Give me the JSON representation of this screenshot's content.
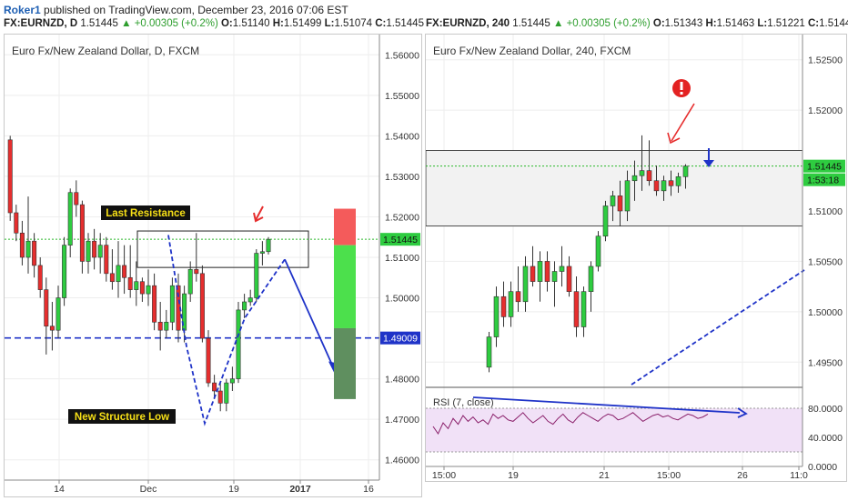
{
  "header": {
    "user": "Roker1",
    "published": "published on TradingView.com, December 23, 2016 07:06 EST"
  },
  "colors": {
    "up": "#2ecc40",
    "down": "#e62e2e",
    "blue": "#1f33c8",
    "guide": "#2ab82a"
  },
  "left_chart": {
    "ohlc": {
      "symbol": "FX:EURNZD, D",
      "price": "1.51445",
      "change": "▲ +0.00305 (+0.2%)",
      "o_label": "O:",
      "o": "1.51140",
      "h_label": "H:",
      "h": "1.51499",
      "l_label": "L:",
      "l": "1.51074",
      "c_label": "C:",
      "c": "1.51445"
    },
    "title": "Euro Fx/New Zealand Dollar, D, FXCM",
    "annotation_resistance": "Last Resistance",
    "annotation_low": "New Structure Low",
    "price_badge": "1.51445",
    "level_badge": "1.49009"
  },
  "right_chart": {
    "ohlc": {
      "symbol": "FX:EURNZD, 240",
      "price": "1.51445",
      "change": "▲ +0.00305 (+0.2%)",
      "o_label": "O:",
      "o": "1.51343",
      "h_label": "H:",
      "h": "1.51463",
      "l_label": "L:",
      "l": "1.51221",
      "c_label": "C:",
      "c": "1.51445"
    },
    "title": "Euro Fx/New Zealand Dollar, 240, FXCM",
    "price_badge": "1.51445",
    "timer_badge": "1:53:18",
    "rsi_label": "RSI (7, close)",
    "alert_icon": "exclamation-icon"
  },
  "chart_data": [
    {
      "type": "candlestick",
      "symbol": "FX:EURNZD",
      "interval": "D",
      "x_ticks": [
        "14",
        "Dec",
        "19",
        "2017",
        "16"
      ],
      "y_ticks": [
        "1.56000",
        "1.55000",
        "1.54000",
        "1.53000",
        "1.52000",
        "1.51000",
        "1.50000",
        "1.48000",
        "1.47000",
        "1.46000"
      ],
      "ylim": [
        1.455,
        1.565
      ],
      "horizontal_levels": [
        1.51445,
        1.49009
      ],
      "resistance_zone": [
        1.5075,
        1.5165
      ],
      "candles": [
        [
          1.539,
          1.54,
          1.519,
          1.521
        ],
        [
          1.521,
          1.523,
          1.514,
          1.516
        ],
        [
          1.516,
          1.519,
          1.508,
          1.51
        ],
        [
          1.51,
          1.525,
          1.506,
          1.514
        ],
        [
          1.514,
          1.516,
          1.505,
          1.508
        ],
        [
          1.508,
          1.51,
          1.5,
          1.502
        ],
        [
          1.502,
          1.505,
          1.486,
          1.493
        ],
        [
          1.493,
          1.499,
          1.487,
          1.492
        ],
        [
          1.492,
          1.503,
          1.49,
          1.5
        ],
        [
          1.5,
          1.515,
          1.498,
          1.513
        ],
        [
          1.513,
          1.527,
          1.51,
          1.526
        ],
        [
          1.526,
          1.529,
          1.52,
          1.523
        ],
        [
          1.523,
          1.524,
          1.506,
          1.509
        ],
        [
          1.509,
          1.516,
          1.506,
          1.514
        ],
        [
          1.514,
          1.517,
          1.507,
          1.51
        ],
        [
          1.51,
          1.516,
          1.506,
          1.513
        ],
        [
          1.513,
          1.515,
          1.504,
          1.506
        ],
        [
          1.506,
          1.512,
          1.502,
          1.504
        ],
        [
          1.504,
          1.514,
          1.5,
          1.508
        ],
        [
          1.508,
          1.513,
          1.501,
          1.505
        ],
        [
          1.505,
          1.513,
          1.5,
          1.502
        ],
        [
          1.502,
          1.509,
          1.498,
          1.504
        ],
        [
          1.504,
          1.505,
          1.499,
          1.501
        ],
        [
          1.501,
          1.507,
          1.498,
          1.503
        ],
        [
          1.503,
          1.506,
          1.492,
          1.494
        ],
        [
          1.494,
          1.499,
          1.487,
          1.492
        ],
        [
          1.492,
          1.497,
          1.49,
          1.494
        ],
        [
          1.494,
          1.505,
          1.492,
          1.503
        ],
        [
          1.503,
          1.506,
          1.489,
          1.492
        ],
        [
          1.492,
          1.503,
          1.489,
          1.501
        ],
        [
          1.501,
          1.509,
          1.499,
          1.507
        ],
        [
          1.507,
          1.516,
          1.504,
          1.506
        ],
        [
          1.506,
          1.508,
          1.489,
          1.49
        ],
        [
          1.49,
          1.492,
          1.478,
          1.479
        ],
        [
          1.479,
          1.481,
          1.475,
          1.477
        ],
        [
          1.477,
          1.479,
          1.472,
          1.474
        ],
        [
          1.474,
          1.48,
          1.472,
          1.479
        ],
        [
          1.479,
          1.483,
          1.477,
          1.48
        ],
        [
          1.48,
          1.499,
          1.479,
          1.497
        ],
        [
          1.497,
          1.501,
          1.495,
          1.499
        ],
        [
          1.499,
          1.502,
          1.498,
          1.5
        ],
        [
          1.5,
          1.512,
          1.499,
          1.511
        ],
        [
          1.511,
          1.514,
          1.508,
          1.5114
        ],
        [
          1.5114,
          1.515,
          1.5107,
          1.51445
        ]
      ]
    },
    {
      "type": "candlestick",
      "symbol": "FX:EURNZD",
      "interval": "240",
      "x_ticks": [
        "15:00",
        "19",
        "21",
        "15:00",
        "26",
        "11:0"
      ],
      "y_ticks": [
        "1.52500",
        "1.52000",
        "1.51000",
        "1.50500",
        "1.50000",
        "1.49500"
      ],
      "ylim": [
        1.4925,
        1.5275
      ],
      "horizontal_levels": [
        1.51445
      ],
      "zone": [
        1.5085,
        1.516
      ],
      "candles": [
        [
          1.4945,
          1.498,
          1.494,
          1.4975
        ],
        [
          1.4975,
          1.5025,
          1.4965,
          1.5015
        ],
        [
          1.5015,
          1.503,
          1.4985,
          1.4995
        ],
        [
          1.4995,
          1.503,
          1.4985,
          1.502
        ],
        [
          1.502,
          1.5045,
          1.5,
          1.501
        ],
        [
          1.501,
          1.5055,
          1.5,
          1.5045
        ],
        [
          1.5045,
          1.5065,
          1.5025,
          1.503
        ],
        [
          1.503,
          1.506,
          1.501,
          1.505
        ],
        [
          1.505,
          1.506,
          1.502,
          1.503
        ],
        [
          1.503,
          1.505,
          1.5005,
          1.504
        ],
        [
          1.504,
          1.5065,
          1.5025,
          1.5045
        ],
        [
          1.5045,
          1.5055,
          1.5015,
          1.502
        ],
        [
          1.502,
          1.5035,
          1.4975,
          1.4985
        ],
        [
          1.4985,
          1.5025,
          1.4975,
          1.502
        ],
        [
          1.502,
          1.505,
          1.5,
          1.5045
        ],
        [
          1.5045,
          1.508,
          1.504,
          1.5075
        ],
        [
          1.5075,
          1.511,
          1.507,
          1.5105
        ],
        [
          1.5105,
          1.512,
          1.509,
          1.5115
        ],
        [
          1.5115,
          1.513,
          1.5085,
          1.51
        ],
        [
          1.51,
          1.514,
          1.509,
          1.513
        ],
        [
          1.513,
          1.515,
          1.511,
          1.5135
        ],
        [
          1.5135,
          1.5175,
          1.512,
          1.514
        ],
        [
          1.514,
          1.517,
          1.5125,
          1.513
        ],
        [
          1.513,
          1.5145,
          1.5115,
          1.512
        ],
        [
          1.512,
          1.5135,
          1.511,
          1.513
        ],
        [
          1.513,
          1.514,
          1.5115,
          1.5125
        ],
        [
          1.5125,
          1.5138,
          1.5118,
          1.5134
        ],
        [
          1.5134,
          1.51463,
          1.51221,
          1.51445
        ]
      ],
      "rsi": {
        "name": "RSI (7, close)",
        "y_ticks": [
          "80.0000",
          "40.0000",
          "0.0000"
        ],
        "ylim": [
          0,
          100
        ],
        "bands": [
          20,
          80
        ],
        "values": [
          55,
          45,
          60,
          52,
          66,
          58,
          70,
          62,
          68,
          60,
          64,
          58,
          72,
          66,
          70,
          64,
          62,
          68,
          74,
          66,
          60,
          65,
          70,
          62,
          58,
          66,
          72,
          64,
          60,
          68,
          74,
          70,
          66,
          62,
          68,
          72,
          70,
          64,
          66,
          70,
          74,
          68,
          62,
          66,
          70,
          72,
          68,
          70,
          66,
          64,
          68,
          72,
          70,
          66,
          68,
          72
        ]
      }
    }
  ]
}
